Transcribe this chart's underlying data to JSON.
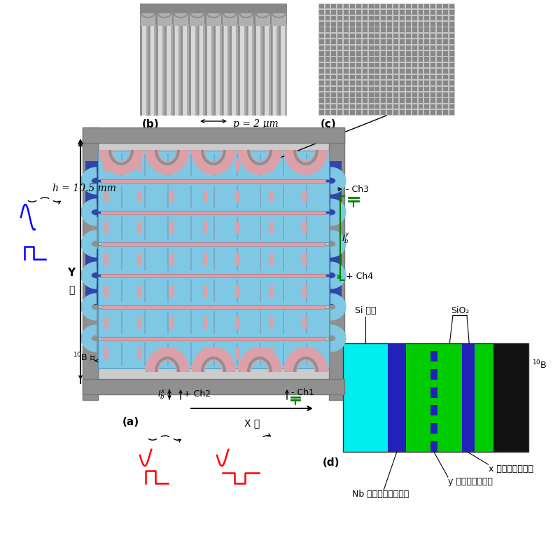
{
  "background_color": "#ffffff",
  "panel_b_label": "(b)",
  "panel_c_label": "(c)",
  "panel_a_label": "(a)",
  "panel_d_label": "(d)",
  "p_label": "p = 2 μm",
  "h_label": "h = 10.5 mm",
  "x_axis_label": "X 軸",
  "y_axis_label": "Y",
  "y_axis_kanji": "軸",
  "ch1_label": "- Ch1",
  "ch2_label": "+ Ch2",
  "ch3_label": "- Ch3",
  "ch4_label": "+ Ch4",
  "ibx_label": "$I_b^x$",
  "iby_label": "$I_b^y$",
  "d_x_meander": "x メアンダライン",
  "d_y_meander": "y メアンダライン",
  "d_nb_ground": "Nb グランドプレーン",
  "d_si": "Si 基板",
  "d_sio2": "SiO₂",
  "c_blue_meander": "#7ec8e3",
  "c_pink_meander": "#dda0a8",
  "c_gray_frame": "#909090",
  "c_gray_dark": "#707070",
  "c_gray_mid": "#b0b0b0",
  "c_purple_sub": "#5566aa",
  "c_dark_blue_conn": "#3344aa",
  "c_green_arrow": "#00aa00",
  "c_cyan_layer": "#00eeee",
  "c_blue_layer": "#2222bb",
  "c_green_layer": "#00cc00",
  "c_black_layer": "#111111"
}
